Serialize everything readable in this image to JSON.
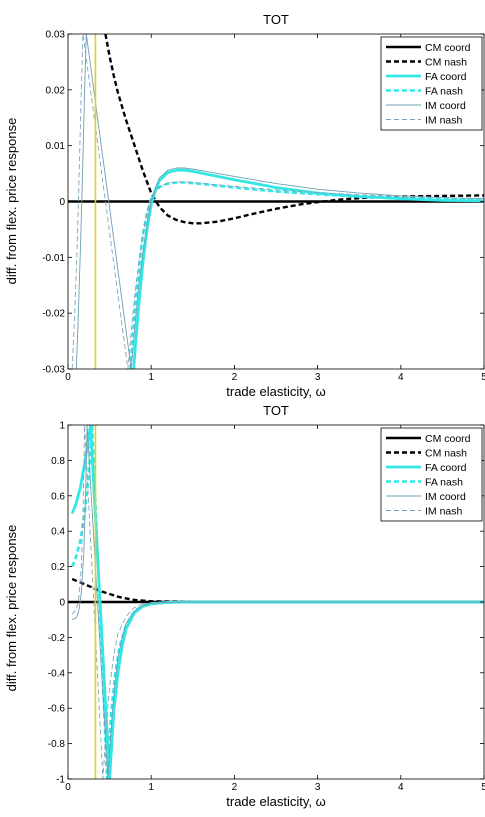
{
  "chart_data": [
    {
      "type": "line",
      "title": "TOT",
      "xlabel": "trade elasticity, ω",
      "ylabel": "diff. from flex. price response",
      "xlim": [
        0,
        5
      ],
      "ylim": [
        -0.03,
        0.03
      ],
      "xticks": [
        "0",
        "1",
        "2",
        "3",
        "4",
        "5"
      ],
      "yticks": [
        "-0.03",
        "-0.02",
        "-0.01",
        "0",
        "0.01",
        "0.02",
        "0.03"
      ],
      "vline_x": 0.33,
      "legend_position": "top-right",
      "series": [
        {
          "name": "CM coord",
          "x": [
            0,
            5
          ],
          "y": [
            0,
            0
          ]
        },
        {
          "name": "CM nash",
          "x": [
            0.45,
            0.5,
            0.55,
            0.6,
            0.7,
            0.8,
            0.9,
            1.0,
            1.1,
            1.2,
            1.3,
            1.4,
            1.5,
            1.6,
            1.8,
            2.0,
            2.2,
            2.5,
            2.8,
            3.0,
            3.3,
            3.6,
            4.0,
            4.5,
            5.0
          ],
          "y": [
            0.03,
            0.026,
            0.0225,
            0.0195,
            0.0145,
            0.01,
            0.0055,
            0.0015,
            -0.001,
            -0.0025,
            -0.0033,
            -0.0037,
            -0.0039,
            -0.0039,
            -0.0036,
            -0.003,
            -0.0023,
            -0.0013,
            -0.0005,
            -0.0001,
            0.0004,
            0.0007,
            0.0009,
            0.001,
            0.0011
          ]
        },
        {
          "name": "FA coord",
          "x": [
            0.79,
            0.82,
            0.86,
            0.9,
            0.95,
            1.0,
            1.05,
            1.1,
            1.2,
            1.3,
            1.4,
            1.5,
            1.7,
            2.0,
            2.5,
            3.0,
            3.5,
            4.0,
            4.5,
            5.0
          ],
          "y": [
            -0.03,
            -0.024,
            -0.017,
            -0.011,
            -0.005,
            -0.0005,
            0.002,
            0.0038,
            0.0052,
            0.0056,
            0.0056,
            0.0054,
            0.0048,
            0.0039,
            0.0025,
            0.0015,
            0.0009,
            0.0005,
            0.0002,
            0.0001
          ]
        },
        {
          "name": "FA nash",
          "x": [
            0.75,
            0.78,
            0.82,
            0.86,
            0.9,
            0.95,
            1.0,
            1.05,
            1.1,
            1.2,
            1.3,
            1.4,
            1.5,
            1.7,
            2.0,
            2.5,
            3.0,
            3.5,
            4.0,
            4.5,
            5.0
          ],
          "y": [
            -0.03,
            -0.024,
            -0.017,
            -0.011,
            -0.006,
            -0.002,
            0.0005,
            0.0018,
            0.0026,
            0.0032,
            0.0034,
            0.0034,
            0.0033,
            0.003,
            0.0025,
            0.0018,
            0.0013,
            0.0009,
            0.0006,
            0.0004,
            0.0003
          ]
        },
        {
          "name": "IM coord",
          "x": [
            0.1,
            0.12,
            0.15,
            0.18,
            0.2,
            0.22,
            0.76,
            0.8,
            0.85,
            0.9,
            0.95,
            1.0,
            1.05,
            1.1,
            1.2,
            1.3,
            1.4,
            1.5,
            1.7,
            2.0,
            2.5,
            3.0,
            3.5,
            4.0,
            4.5,
            5.0
          ],
          "y": [
            -0.03,
            -0.022,
            -0.008,
            0.008,
            0.02,
            0.03,
            -0.03,
            -0.023,
            -0.015,
            -0.009,
            -0.004,
            0,
            0.0025,
            0.0042,
            0.0056,
            0.006,
            0.006,
            0.0058,
            0.0053,
            0.0045,
            0.0032,
            0.0022,
            0.0015,
            0.001,
            0.0007,
            0.0005
          ]
        },
        {
          "name": "IM nash",
          "x": [
            0.05,
            0.08,
            0.11,
            0.14,
            0.16,
            0.18,
            0.72,
            0.75,
            0.8,
            0.85,
            0.9,
            0.95,
            1.0,
            1.05,
            1.1,
            1.2,
            1.3,
            1.4,
            1.5,
            1.7,
            2.0,
            2.5,
            3.0,
            3.5,
            4.0,
            4.5,
            5.0
          ],
          "y": [
            -0.03,
            -0.02,
            -0.008,
            0.008,
            0.02,
            0.03,
            -0.03,
            -0.025,
            -0.017,
            -0.011,
            -0.006,
            -0.002,
            0.0005,
            0.0018,
            0.0027,
            0.0033,
            0.0035,
            0.0035,
            0.0034,
            0.0031,
            0.0027,
            0.0021,
            0.0016,
            0.0012,
            0.0009,
            0.0007,
            0.0005
          ]
        }
      ]
    },
    {
      "type": "line",
      "title": "TOT",
      "xlabel": "trade elasticity, ω",
      "ylabel": "diff. from flex. price response",
      "xlim": [
        0,
        5
      ],
      "ylim": [
        -1,
        1
      ],
      "xticks": [
        "0",
        "1",
        "2",
        "3",
        "4",
        "5"
      ],
      "yticks": [
        "-1",
        "-0.8",
        "-0.6",
        "-0.4",
        "-0.2",
        "0",
        "0.2",
        "0.4",
        "0.6",
        "0.8",
        "1"
      ],
      "vline_x": 0.33,
      "legend_position": "top-right",
      "series": [
        {
          "name": "CM coord",
          "x": [
            0,
            5
          ],
          "y": [
            0,
            0
          ]
        },
        {
          "name": "CM nash",
          "x": [
            0.05,
            0.1,
            0.15,
            0.2,
            0.3,
            0.4,
            0.5,
            0.6,
            0.7,
            0.8,
            1.0,
            1.5,
            2.0,
            5.0
          ],
          "y": [
            0.13,
            0.12,
            0.11,
            0.1,
            0.08,
            0.06,
            0.045,
            0.03,
            0.02,
            0.012,
            0.004,
            0.001,
            0,
            0
          ]
        },
        {
          "name": "FA coord",
          "x": [
            0.05,
            0.1,
            0.15,
            0.2,
            0.24,
            0.27,
            0.5,
            0.55,
            0.6,
            0.65,
            0.7,
            0.8,
            0.9,
            1.0,
            1.2,
            1.5,
            2.0,
            5.0
          ],
          "y": [
            0.5,
            0.56,
            0.65,
            0.78,
            0.9,
            1.0,
            -1.0,
            -0.62,
            -0.4,
            -0.25,
            -0.15,
            -0.06,
            -0.025,
            -0.01,
            -0.002,
            0,
            0,
            0
          ]
        },
        {
          "name": "FA nash",
          "x": [
            0.05,
            0.1,
            0.15,
            0.2,
            0.25,
            0.29,
            0.47,
            0.52,
            0.57,
            0.62,
            0.7,
            0.8,
            0.9,
            1.0,
            1.2,
            1.5,
            2.0,
            5.0
          ],
          "y": [
            0.2,
            0.26,
            0.35,
            0.5,
            0.72,
            1.0,
            -1.0,
            -0.62,
            -0.4,
            -0.25,
            -0.13,
            -0.05,
            -0.02,
            -0.008,
            -0.002,
            0,
            0,
            0
          ]
        },
        {
          "name": "IM coord",
          "x": [
            0.05,
            0.1,
            0.13,
            0.16,
            0.19,
            0.21,
            0.23,
            0.48,
            0.52,
            0.56,
            0.6,
            0.65,
            0.7,
            0.8,
            0.9,
            1.0,
            1.2,
            1.5,
            2.0,
            5.0
          ],
          "y": [
            -0.1,
            -0.09,
            -0.05,
            0.05,
            0.28,
            0.6,
            1.0,
            -1.0,
            -0.7,
            -0.48,
            -0.32,
            -0.2,
            -0.12,
            -0.05,
            -0.02,
            -0.008,
            -0.002,
            0,
            0,
            0
          ]
        },
        {
          "name": "IM nash",
          "x": [
            0.05,
            0.1,
            0.13,
            0.16,
            0.18,
            0.2,
            0.42,
            0.46,
            0.5,
            0.55,
            0.6,
            0.7,
            0.8,
            0.9,
            1.0,
            1.2,
            1.5,
            2.0,
            5.0
          ],
          "y": [
            -0.07,
            -0.04,
            0.02,
            0.2,
            0.5,
            1.0,
            -1.0,
            -0.7,
            -0.48,
            -0.3,
            -0.18,
            -0.08,
            -0.03,
            -0.012,
            -0.005,
            -0.001,
            0,
            0,
            0
          ]
        }
      ]
    }
  ],
  "styles": {
    "CM coord": {
      "color": "#000000",
      "dash": "",
      "width": 2.6
    },
    "CM nash": {
      "color": "#000000",
      "dash": "5,3",
      "width": 2.4
    },
    "FA coord": {
      "color": "#33e6e6",
      "dash": "",
      "width": 2.8
    },
    "FA nash": {
      "color": "#33e6e6",
      "dash": "5,3",
      "width": 2.6
    },
    "IM coord": {
      "color": "#6f9fb4",
      "dash": "",
      "width": 0.9
    },
    "IM nash": {
      "color": "#7fa5b8",
      "dash": "5,3",
      "width": 0.9
    },
    "vline_color": "#e6cf1a"
  }
}
